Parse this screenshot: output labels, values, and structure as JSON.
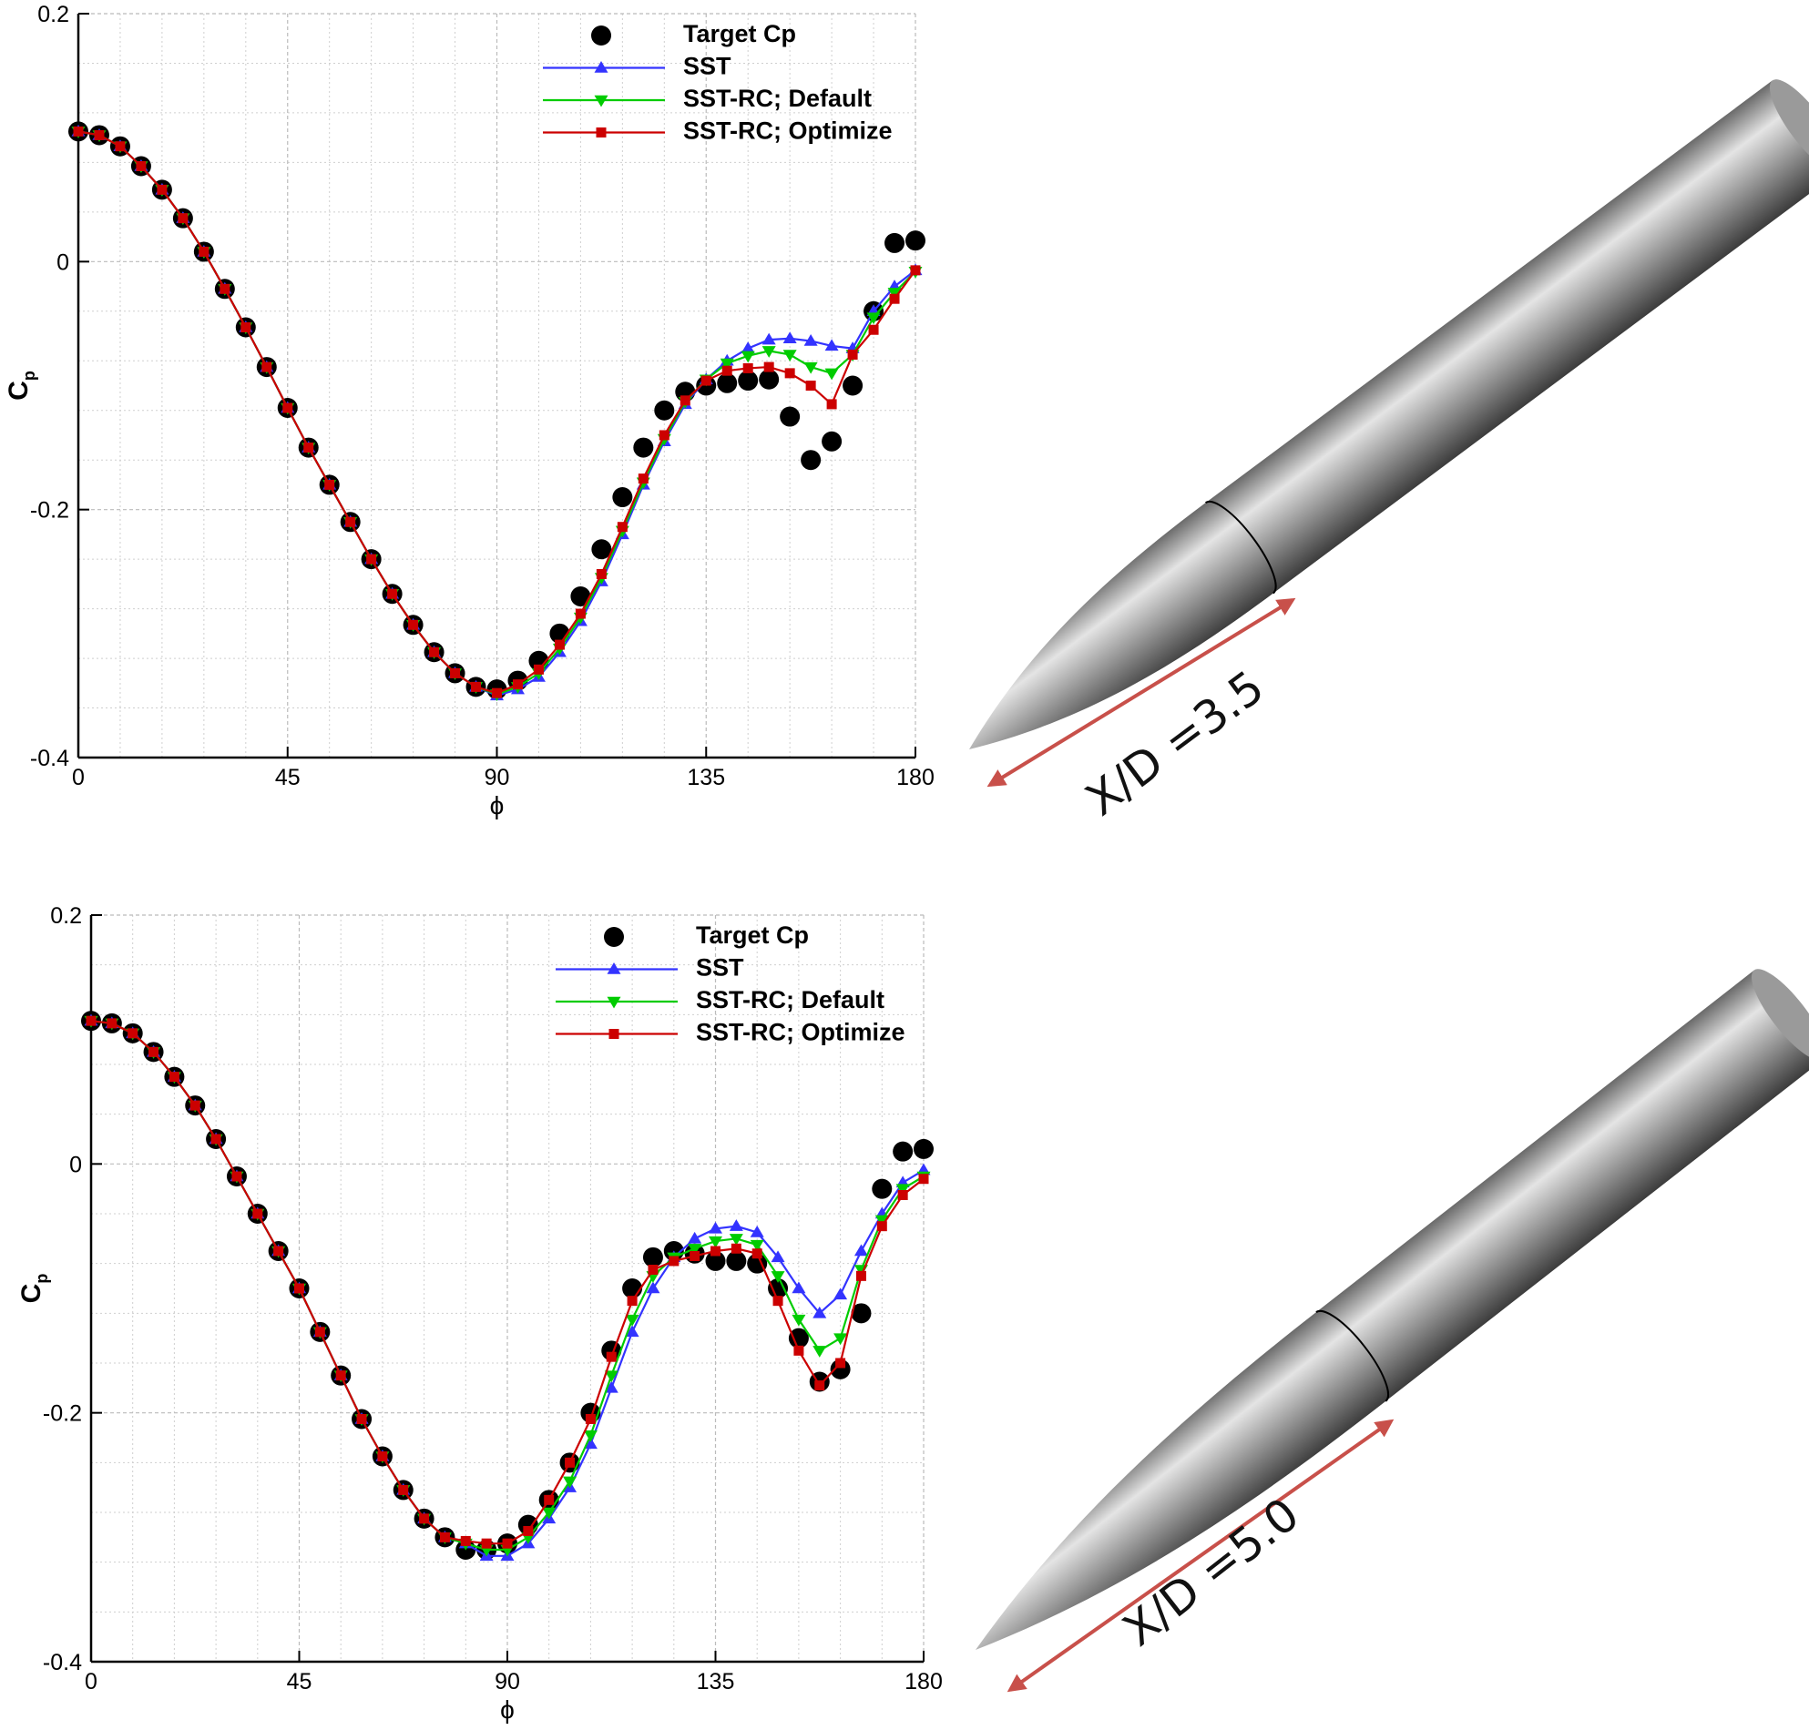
{
  "chart_data": [
    {
      "type": "line",
      "xlabel": "ϕ",
      "ylabel": "C",
      "ylabel_sub": "p",
      "annotation": "X/D =3.5",
      "xlim": [
        0,
        180
      ],
      "ylim": [
        -0.4,
        0.2
      ],
      "xticks": [
        0,
        45,
        90,
        135,
        180
      ],
      "yticks": [
        -0.4,
        -0.2,
        0,
        0.2
      ],
      "minor_xticks": [
        9,
        18,
        27,
        36,
        54,
        63,
        72,
        81,
        99,
        108,
        117,
        126,
        144,
        153,
        162,
        171
      ],
      "minor_yticks": [
        -0.36,
        -0.32,
        -0.28,
        -0.24,
        -0.16,
        -0.12,
        -0.08,
        -0.04,
        0.04,
        0.08,
        0.12,
        0.16
      ],
      "grid": true,
      "x": [
        0,
        4.5,
        9,
        13.5,
        18,
        22.5,
        27,
        31.5,
        36,
        40.5,
        45,
        49.5,
        54,
        58.5,
        63,
        67.5,
        72,
        76.5,
        81,
        85.5,
        90,
        94.5,
        99,
        103.5,
        108,
        112.5,
        117,
        121.5,
        126,
        130.5,
        135,
        139.5,
        144,
        148.5,
        153,
        157.5,
        162,
        166.5,
        171,
        175.5,
        180
      ],
      "series": [
        {
          "name": "Target Cp",
          "color": "#000000",
          "marker": "circle",
          "line": false,
          "values": [
            0.105,
            0.102,
            0.093,
            0.077,
            0.058,
            0.035,
            0.008,
            -0.022,
            -0.053,
            -0.085,
            -0.118,
            -0.15,
            -0.18,
            -0.21,
            -0.24,
            -0.268,
            -0.293,
            -0.315,
            -0.332,
            -0.343,
            -0.345,
            -0.338,
            -0.322,
            -0.3,
            -0.27,
            -0.232,
            -0.19,
            -0.15,
            -0.12,
            -0.105,
            -0.1,
            -0.098,
            -0.096,
            -0.095,
            -0.125,
            -0.16,
            -0.145,
            -0.1,
            -0.04,
            0.015,
            0.017
          ]
        },
        {
          "name": "SST",
          "color": "#3333ff",
          "marker": "triangle-up",
          "line": true,
          "values": [
            0.105,
            0.102,
            0.093,
            0.077,
            0.058,
            0.035,
            0.008,
            -0.022,
            -0.053,
            -0.085,
            -0.118,
            -0.15,
            -0.18,
            -0.21,
            -0.24,
            -0.268,
            -0.293,
            -0.315,
            -0.332,
            -0.343,
            -0.35,
            -0.345,
            -0.335,
            -0.315,
            -0.29,
            -0.258,
            -0.22,
            -0.18,
            -0.145,
            -0.115,
            -0.095,
            -0.08,
            -0.07,
            -0.063,
            -0.062,
            -0.064,
            -0.068,
            -0.07,
            -0.04,
            -0.02,
            -0.007
          ]
        },
        {
          "name": "SST-RC; Default",
          "color": "#00cc00",
          "marker": "triangle-down",
          "line": true,
          "values": [
            0.105,
            0.102,
            0.093,
            0.077,
            0.058,
            0.035,
            0.008,
            -0.022,
            -0.053,
            -0.085,
            -0.118,
            -0.15,
            -0.18,
            -0.21,
            -0.24,
            -0.268,
            -0.293,
            -0.315,
            -0.332,
            -0.343,
            -0.349,
            -0.343,
            -0.332,
            -0.312,
            -0.287,
            -0.255,
            -0.217,
            -0.178,
            -0.143,
            -0.113,
            -0.095,
            -0.082,
            -0.076,
            -0.072,
            -0.075,
            -0.085,
            -0.09,
            -0.075,
            -0.045,
            -0.025,
            -0.008
          ]
        },
        {
          "name": "SST-RC; Optimize",
          "color": "#cc0000",
          "marker": "square",
          "line": true,
          "values": [
            0.105,
            0.102,
            0.093,
            0.077,
            0.058,
            0.035,
            0.008,
            -0.022,
            -0.053,
            -0.085,
            -0.118,
            -0.15,
            -0.18,
            -0.21,
            -0.24,
            -0.268,
            -0.293,
            -0.315,
            -0.332,
            -0.343,
            -0.348,
            -0.341,
            -0.329,
            -0.309,
            -0.284,
            -0.252,
            -0.214,
            -0.175,
            -0.14,
            -0.112,
            -0.096,
            -0.088,
            -0.086,
            -0.085,
            -0.09,
            -0.1,
            -0.115,
            -0.075,
            -0.055,
            -0.03,
            -0.007
          ]
        }
      ]
    },
    {
      "type": "line",
      "xlabel": "ϕ",
      "ylabel": "C",
      "ylabel_sub": "p",
      "annotation": "X/D =5.0",
      "xlim": [
        0,
        180
      ],
      "ylim": [
        -0.4,
        0.2
      ],
      "xticks": [
        0,
        45,
        90,
        135,
        180
      ],
      "yticks": [
        -0.4,
        -0.2,
        0,
        0.2
      ],
      "minor_xticks": [
        9,
        18,
        27,
        36,
        54,
        63,
        72,
        81,
        99,
        108,
        117,
        126,
        144,
        153,
        162,
        171
      ],
      "minor_yticks": [
        -0.36,
        -0.32,
        -0.28,
        -0.24,
        -0.16,
        -0.12,
        -0.08,
        -0.04,
        0.04,
        0.08,
        0.12,
        0.16
      ],
      "grid": true,
      "x": [
        0,
        4.5,
        9,
        13.5,
        18,
        22.5,
        27,
        31.5,
        36,
        40.5,
        45,
        49.5,
        54,
        58.5,
        63,
        67.5,
        72,
        76.5,
        81,
        85.5,
        90,
        94.5,
        99,
        103.5,
        108,
        112.5,
        117,
        121.5,
        126,
        130.5,
        135,
        139.5,
        144,
        148.5,
        153,
        157.5,
        162,
        166.5,
        171,
        175.5,
        180
      ],
      "series": [
        {
          "name": "Target Cp",
          "color": "#000000",
          "marker": "circle",
          "line": false,
          "values": [
            0.115,
            0.113,
            0.105,
            0.09,
            0.07,
            0.047,
            0.02,
            -0.01,
            -0.04,
            -0.07,
            -0.1,
            -0.135,
            -0.17,
            -0.205,
            -0.235,
            -0.262,
            -0.285,
            -0.3,
            -0.31,
            -0.31,
            -0.305,
            -0.29,
            -0.27,
            -0.24,
            -0.2,
            -0.15,
            -0.1,
            -0.075,
            -0.07,
            -0.072,
            -0.078,
            -0.078,
            -0.08,
            -0.1,
            -0.14,
            -0.175,
            -0.165,
            -0.12,
            -0.02,
            0.01,
            0.012
          ]
        },
        {
          "name": "SST",
          "color": "#3333ff",
          "marker": "triangle-up",
          "line": true,
          "values": [
            0.115,
            0.113,
            0.105,
            0.09,
            0.07,
            0.047,
            0.02,
            -0.01,
            -0.04,
            -0.07,
            -0.1,
            -0.135,
            -0.17,
            -0.205,
            -0.235,
            -0.262,
            -0.285,
            -0.3,
            -0.305,
            -0.315,
            -0.315,
            -0.305,
            -0.285,
            -0.26,
            -0.225,
            -0.18,
            -0.135,
            -0.1,
            -0.075,
            -0.06,
            -0.052,
            -0.05,
            -0.055,
            -0.075,
            -0.1,
            -0.12,
            -0.105,
            -0.07,
            -0.04,
            -0.015,
            -0.005
          ]
        },
        {
          "name": "SST-RC; Default",
          "color": "#00cc00",
          "marker": "triangle-down",
          "line": true,
          "values": [
            0.115,
            0.113,
            0.105,
            0.09,
            0.07,
            0.047,
            0.02,
            -0.01,
            -0.04,
            -0.07,
            -0.1,
            -0.135,
            -0.17,
            -0.205,
            -0.235,
            -0.262,
            -0.285,
            -0.3,
            -0.305,
            -0.31,
            -0.31,
            -0.3,
            -0.28,
            -0.255,
            -0.218,
            -0.17,
            -0.125,
            -0.09,
            -0.075,
            -0.068,
            -0.062,
            -0.06,
            -0.065,
            -0.09,
            -0.125,
            -0.15,
            -0.14,
            -0.085,
            -0.045,
            -0.02,
            -0.01
          ]
        },
        {
          "name": "SST-RC; Optimize",
          "color": "#cc0000",
          "marker": "square",
          "line": true,
          "values": [
            0.115,
            0.113,
            0.105,
            0.09,
            0.07,
            0.047,
            0.02,
            -0.01,
            -0.04,
            -0.07,
            -0.1,
            -0.135,
            -0.17,
            -0.205,
            -0.235,
            -0.262,
            -0.285,
            -0.3,
            -0.303,
            -0.305,
            -0.305,
            -0.295,
            -0.27,
            -0.24,
            -0.205,
            -0.155,
            -0.11,
            -0.085,
            -0.078,
            -0.074,
            -0.07,
            -0.068,
            -0.072,
            -0.11,
            -0.15,
            -0.178,
            -0.16,
            -0.09,
            -0.05,
            -0.025,
            -0.012
          ]
        }
      ]
    }
  ]
}
